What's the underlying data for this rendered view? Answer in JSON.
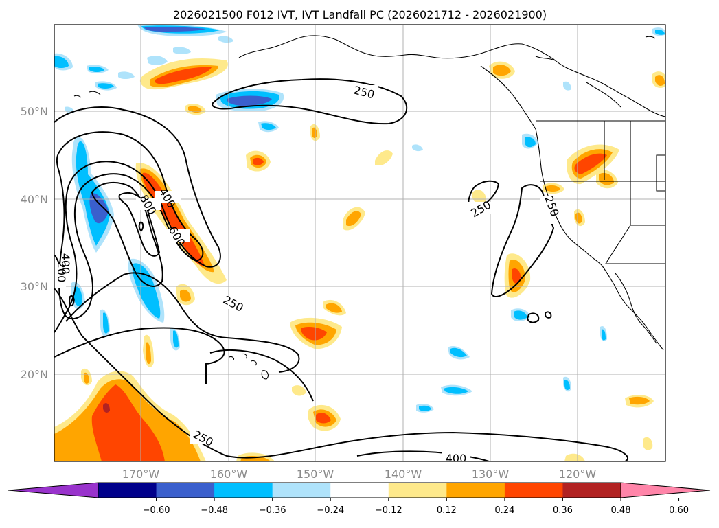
{
  "title": "2026021500 F012 IVT, IVT Landfall PC (2026021712 - 2026021900)",
  "map": {
    "lat_labels": [
      "50°N",
      "40°N",
      "30°N",
      "20°N"
    ],
    "lon_labels": [
      "170°W",
      "160°W",
      "150°W",
      "140°W",
      "130°W",
      "120°W"
    ],
    "contour_labels": [
      "250",
      "400",
      "800",
      "600",
      "250",
      "200",
      "400",
      "250",
      "250",
      "250",
      "400"
    ]
  },
  "colorbar": {
    "colors": [
      "#9933cc",
      "#00008b",
      "#3a5fcd",
      "#00bfff",
      "#afe3fb",
      "#ffffff",
      "#fee98b",
      "#ffa500",
      "#ff4500",
      "#b22222",
      "#ff85a9"
    ],
    "tick_labels": [
      "−0.60",
      "−0.48",
      "−0.36",
      "−0.24",
      "−0.12",
      "0.12",
      "0.24",
      "0.36",
      "0.48",
      "0.60"
    ]
  }
}
